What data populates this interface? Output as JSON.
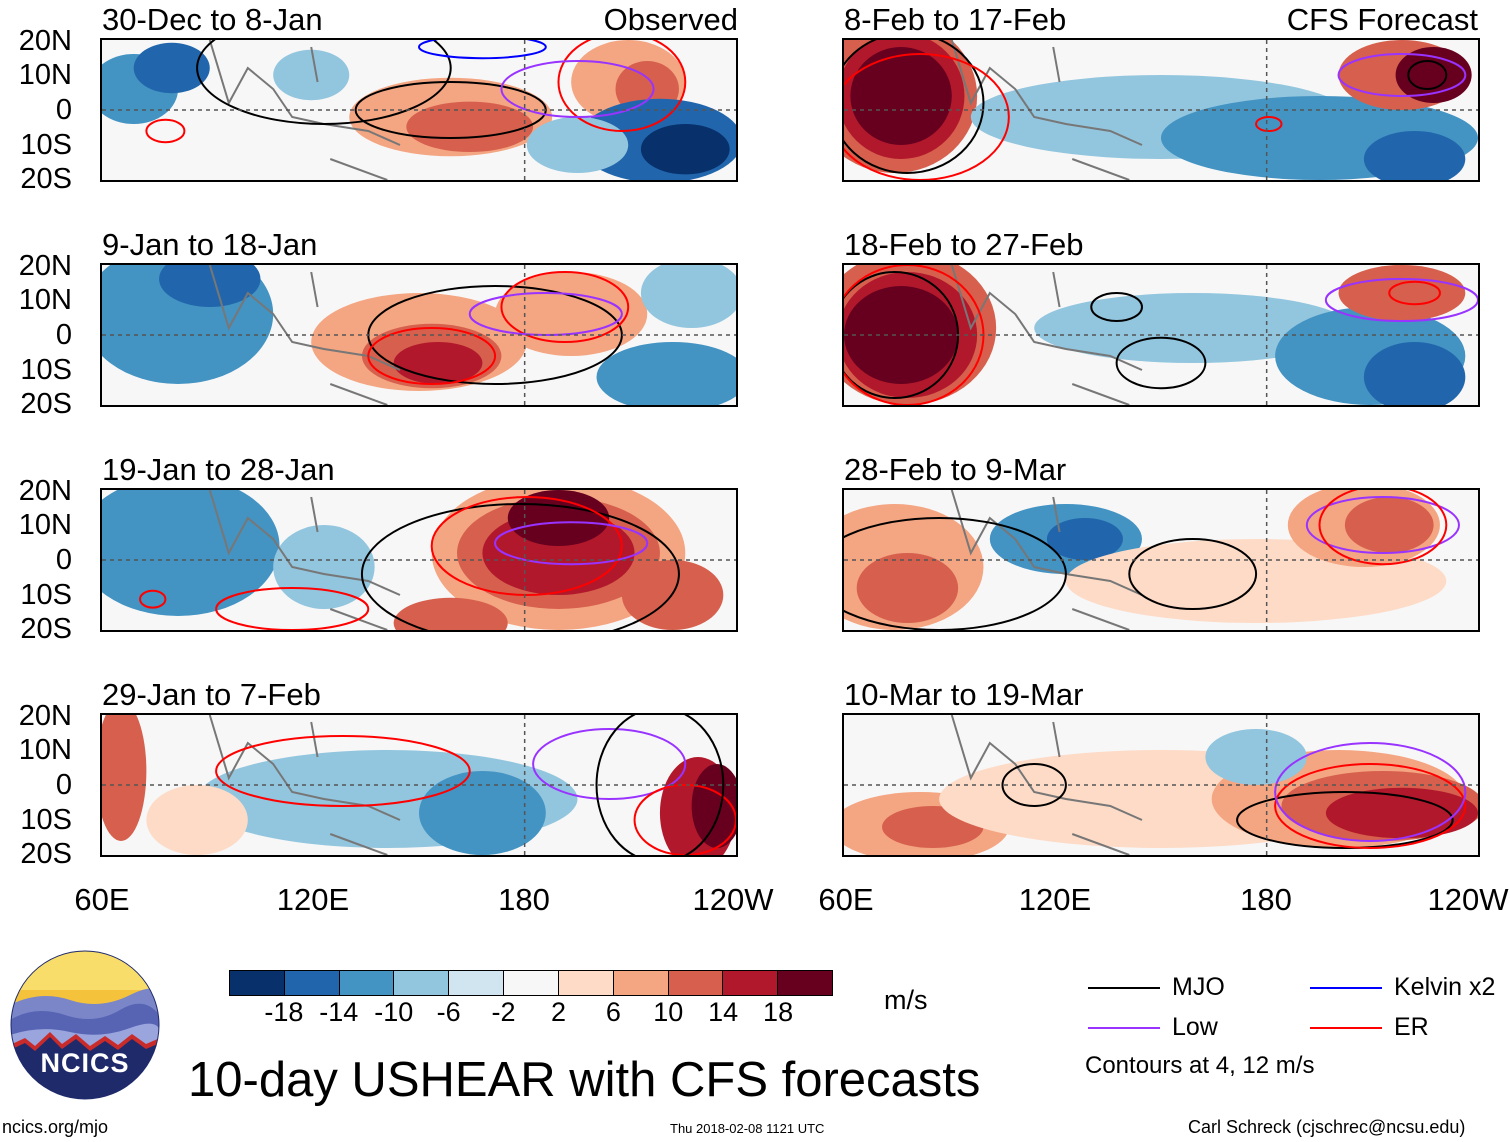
{
  "left_column": {
    "tag": "Observed",
    "panels": [
      {
        "title": "30-Dec to 8-Jan"
      },
      {
        "title": "9-Jan to 18-Jan"
      },
      {
        "title": "19-Jan to 28-Jan"
      },
      {
        "title": "29-Jan to 7-Feb"
      }
    ]
  },
  "right_column": {
    "tag": "CFS Forecast",
    "panels": [
      {
        "title": "8-Feb to 17-Feb"
      },
      {
        "title": "18-Feb to 27-Feb"
      },
      {
        "title": "28-Feb to 9-Mar"
      },
      {
        "title": "10-Mar to 19-Mar"
      }
    ]
  },
  "lat_labels": [
    "20N",
    "10N",
    "0",
    "10S",
    "20S"
  ],
  "lon_labels": [
    "60E",
    "120E",
    "180",
    "120W"
  ],
  "colorbar": {
    "colors": [
      "#08306b",
      "#2166ac",
      "#4393c3",
      "#92c5de",
      "#d1e5f0",
      "#f7f7f7",
      "#fddbc7",
      "#f4a582",
      "#d6604d",
      "#b2182b",
      "#67001f"
    ],
    "ticks": [
      "-18",
      "-14",
      "-10",
      "-6",
      "-2",
      "2",
      "6",
      "10",
      "14",
      "18"
    ],
    "units": "m/s"
  },
  "legend": {
    "items": [
      {
        "label": "MJO",
        "color": "#000000"
      },
      {
        "label": "Kelvin x2",
        "color": "#0000ff"
      },
      {
        "label": "Low",
        "color": "#9933ff"
      },
      {
        "label": "ER",
        "color": "#ff0000"
      }
    ],
    "note": "Contours at 4, 12 m/s"
  },
  "logo": {
    "text": "NCICS"
  },
  "title": "10-day USHEAR with CFS forecasts",
  "footer": {
    "url": "ncics.org/mjo",
    "timestamp": "Thu 2018-02-08 1121 UTC",
    "credit": "Carl Schreck (cjschrec@ncsu.edu)"
  }
}
